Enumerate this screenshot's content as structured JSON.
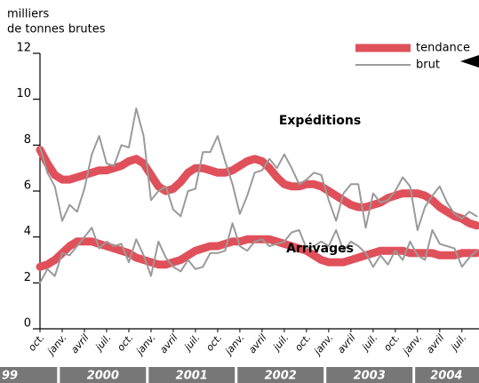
{
  "chart_data": {
    "type": "line",
    "y_label": [
      "milliers",
      "de tonnes brutes"
    ],
    "ylim": [
      0,
      12
    ],
    "yticks": [
      0,
      2,
      4,
      6,
      8,
      10,
      12
    ],
    "categories": [
      "oct.",
      null,
      null,
      "janv.",
      null,
      null,
      "avril",
      null,
      null,
      "juil.",
      null,
      null,
      "oct.",
      null,
      null,
      "janv.",
      null,
      null,
      "avril",
      null,
      null,
      "juil.",
      null,
      null,
      "oct.",
      null,
      null,
      "janv.",
      null,
      null,
      "avril",
      null,
      null,
      "juil.",
      null,
      null,
      "oct.",
      null,
      null,
      "janv.",
      null,
      null,
      "avril",
      null,
      null,
      "juil.",
      null,
      null,
      "oct.",
      null,
      null,
      "janv.",
      null,
      null,
      "avril",
      null,
      null,
      "juil.",
      null,
      null
    ],
    "years": [
      "99",
      "2000",
      "2001",
      "2002",
      "2003",
      "2004"
    ],
    "legend": [
      {
        "name": "tendance",
        "color": "#e0505a",
        "width": 9
      },
      {
        "name": "brut",
        "color": "#9a9a9a",
        "width": 2
      }
    ],
    "groups": [
      {
        "label": "Expéditions",
        "tendance": [
          7.8,
          7.2,
          6.7,
          6.5,
          6.5,
          6.6,
          6.7,
          6.8,
          6.9,
          6.9,
          7.0,
          7.1,
          7.3,
          7.4,
          7.2,
          6.7,
          6.2,
          6.0,
          6.1,
          6.4,
          6.8,
          7.0,
          7.0,
          6.9,
          6.8,
          6.8,
          6.9,
          7.1,
          7.3,
          7.4,
          7.3,
          7.0,
          6.6,
          6.3,
          6.2,
          6.2,
          6.3,
          6.3,
          6.2,
          6.0,
          5.8,
          5.6,
          5.4,
          5.3,
          5.3,
          5.4,
          5.5,
          5.7,
          5.8,
          5.9,
          5.9,
          5.9,
          5.8,
          5.6,
          5.3,
          5.1,
          4.9,
          4.8,
          4.6,
          4.5
        ],
        "brut": [
          7.9,
          6.8,
          6.2,
          4.7,
          5.4,
          5.1,
          6.1,
          7.6,
          8.4,
          7.2,
          7.1,
          8.0,
          7.9,
          9.6,
          8.4,
          5.6,
          6.0,
          6.2,
          5.2,
          4.9,
          6.0,
          6.1,
          7.7,
          7.7,
          8.4,
          7.3,
          6.3,
          5.0,
          5.8,
          6.8,
          6.9,
          7.4,
          7.0,
          7.6,
          7.0,
          6.3,
          6.5,
          6.8,
          6.7,
          5.6,
          4.7,
          5.9,
          6.3,
          6.3,
          4.4,
          5.9,
          5.5,
          5.6,
          6.0,
          6.6,
          6.2,
          4.3,
          5.3,
          5.8,
          6.2,
          5.5,
          5.0,
          4.8,
          5.1,
          4.9
        ]
      },
      {
        "label": "Arrivages",
        "tendance": [
          2.7,
          2.8,
          3.0,
          3.3,
          3.6,
          3.8,
          3.8,
          3.8,
          3.7,
          3.6,
          3.5,
          3.4,
          3.3,
          3.1,
          3.0,
          2.9,
          2.8,
          2.8,
          2.9,
          3.0,
          3.2,
          3.4,
          3.5,
          3.6,
          3.6,
          3.7,
          3.8,
          3.8,
          3.9,
          3.9,
          3.9,
          3.9,
          3.8,
          3.7,
          3.6,
          3.5,
          3.4,
          3.2,
          3.0,
          2.9,
          2.9,
          2.9,
          3.0,
          3.1,
          3.2,
          3.3,
          3.4,
          3.4,
          3.4,
          3.4,
          3.3,
          3.3,
          3.3,
          3.3,
          3.2,
          3.2,
          3.2,
          3.3,
          3.3,
          3.3
        ],
        "brut": [
          2.0,
          2.6,
          2.3,
          3.3,
          3.2,
          3.6,
          4.0,
          4.4,
          3.5,
          3.8,
          3.6,
          3.7,
          2.9,
          3.9,
          3.2,
          2.3,
          3.8,
          3.1,
          2.7,
          2.5,
          3.0,
          2.6,
          2.7,
          3.3,
          3.3,
          3.4,
          4.6,
          3.6,
          3.4,
          3.8,
          3.9,
          3.6,
          3.7,
          3.8,
          4.2,
          4.3,
          3.5,
          3.6,
          3.8,
          3.6,
          4.3,
          3.4,
          3.8,
          3.6,
          3.3,
          2.7,
          3.2,
          2.8,
          3.4,
          3.0,
          3.8,
          3.2,
          3.0,
          4.3,
          3.7,
          3.6,
          3.5,
          2.7,
          3.1,
          3.4
        ]
      }
    ]
  }
}
